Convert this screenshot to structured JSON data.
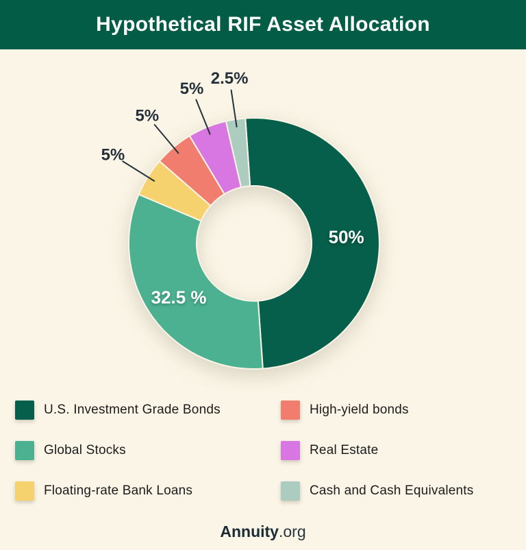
{
  "header": {
    "title": "Hypothetical RIF Asset Allocation"
  },
  "chart_data": {
    "type": "pie",
    "subtype": "donut",
    "title": "Hypothetical RIF Asset Allocation",
    "start_angle_deg": -4,
    "direction": "clockwise",
    "legend_position": "bottom",
    "slices": [
      {
        "label": "U.S. Investment Grade Bonds",
        "value": 50,
        "display": "50%",
        "color": "#055F4A",
        "label_placement": "inside"
      },
      {
        "label": "Global Stocks",
        "value": 32.5,
        "display": "32.5 %",
        "color": "#4BB190",
        "label_placement": "inside"
      },
      {
        "label": "Floating-rate Bank Loans",
        "value": 5,
        "display": "5%",
        "color": "#F6D26E",
        "label_placement": "outside"
      },
      {
        "label": "High-yield bonds",
        "value": 5,
        "display": "5%",
        "color": "#F07D6D",
        "label_placement": "outside"
      },
      {
        "label": "Real Estate",
        "value": 5,
        "display": "5%",
        "color": "#D877E1",
        "label_placement": "outside"
      },
      {
        "label": "Cash and Cash Equivalents",
        "value": 2.5,
        "display": "2.5%",
        "color": "#ACCCBF",
        "label_placement": "outside"
      }
    ]
  },
  "footer": {
    "brand_bold": "Annuity",
    "brand_suffix": ".org"
  },
  "colors": {
    "header_bg": "#025C46",
    "background": "#FBF5E7",
    "text_dark": "#25313A",
    "title_text": "#FFFFFF"
  }
}
